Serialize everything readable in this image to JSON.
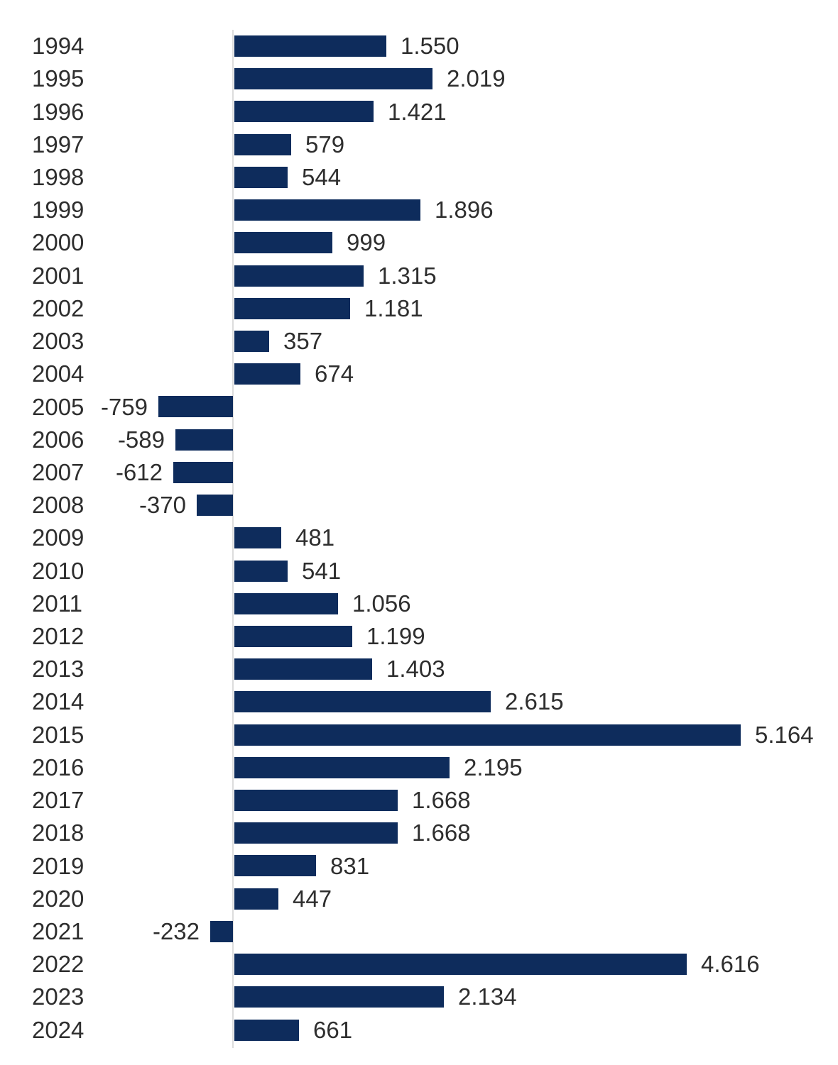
{
  "chart_data": {
    "type": "bar",
    "orientation": "horizontal",
    "title": "",
    "xlabel": "",
    "ylabel": "",
    "legend_position": "none",
    "grid": false,
    "number_format": "thousands-dot",
    "value_label_position": "outside-end",
    "xlim": [
      -900,
      6100
    ],
    "baseline": 0,
    "bar_color": "#0e2c5c",
    "axis_line_color": "#dcdcdc",
    "text_color": "#2e2e2e",
    "categories": [
      "1994",
      "1995",
      "1996",
      "1997",
      "1998",
      "1999",
      "2000",
      "2001",
      "2002",
      "2003",
      "2004",
      "2005",
      "2006",
      "2007",
      "2008",
      "2009",
      "2010",
      "2011",
      "2012",
      "2013",
      "2014",
      "2015",
      "2016",
      "2017",
      "2018",
      "2019",
      "2020",
      "2021",
      "2022",
      "2023",
      "2024"
    ],
    "values": [
      1550,
      2019,
      1421,
      579,
      544,
      1896,
      999,
      1315,
      1181,
      357,
      674,
      -759,
      -589,
      -612,
      -370,
      481,
      541,
      1056,
      1199,
      1403,
      2615,
      5164,
      2195,
      1668,
      1668,
      831,
      447,
      -232,
      4616,
      2134,
      661
    ],
    "value_labels": [
      "1.550",
      "2.019",
      "1.421",
      "579",
      "544",
      "1.896",
      "999",
      "1.315",
      "1.181",
      "357",
      "674",
      "-759",
      "-589",
      "-612",
      "-370",
      "481",
      "541",
      "1.056",
      "1.199",
      "1.403",
      "2.615",
      "5.164",
      "2.195",
      "1.668",
      "1.668",
      "831",
      "447",
      "-232",
      "4.616",
      "2.134",
      "661"
    ]
  }
}
